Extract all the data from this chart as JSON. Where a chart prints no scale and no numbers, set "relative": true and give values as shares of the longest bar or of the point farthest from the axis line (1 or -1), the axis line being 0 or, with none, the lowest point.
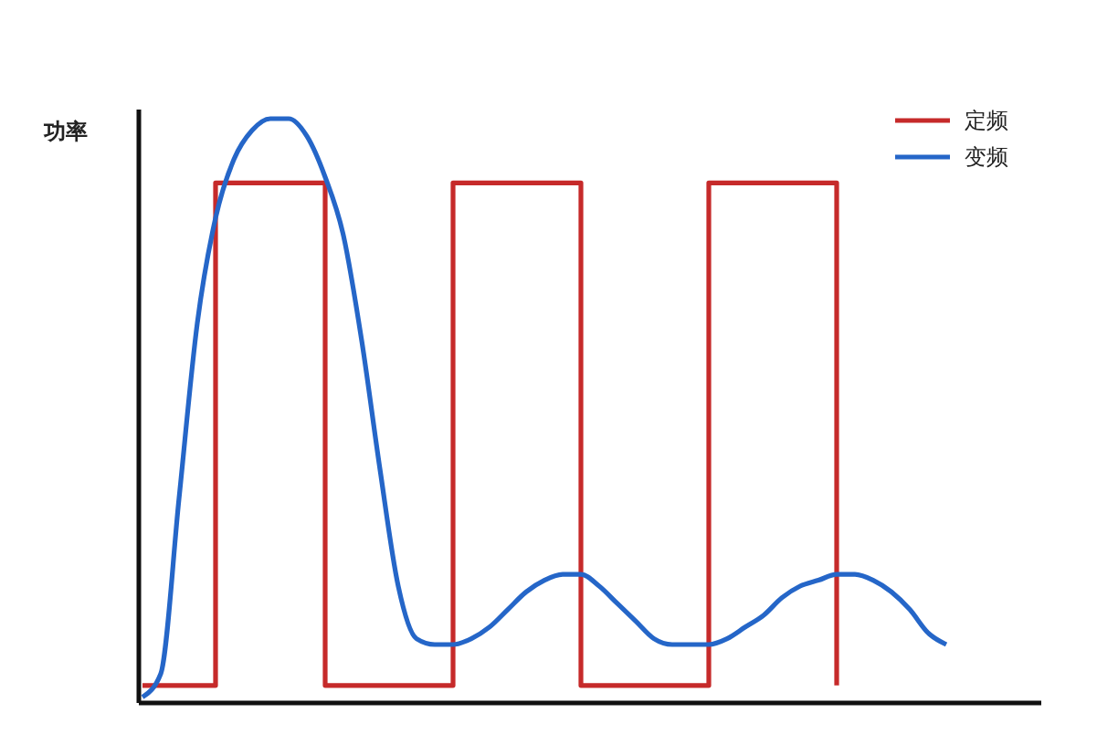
{
  "chart_data": {
    "type": "line",
    "ylabel": "功率",
    "relative": true,
    "legend": "top right",
    "categories": [
      null,
      null,
      null,
      null,
      null,
      null,
      null,
      null,
      null,
      null,
      null,
      null,
      null,
      null,
      null,
      null,
      null,
      null,
      null,
      null,
      null,
      null,
      null,
      null,
      null,
      null,
      null,
      null,
      null,
      null,
      null,
      null,
      null,
      null,
      null,
      null,
      null,
      null,
      null,
      null,
      null,
      null,
      null,
      null,
      null,
      null,
      null,
      null,
      null,
      null
    ],
    "series": [
      {
        "name": "定频",
        "type": "step",
        "color": "#c62a2a",
        "values": [
          0.03,
          0.03,
          0.03,
          0.03,
          0.89,
          0.89,
          0.89,
          0.89,
          0.89,
          0.89,
          0.03,
          0.03,
          0.03,
          0.03,
          0.03,
          0.03,
          0.03,
          0.89,
          0.89,
          0.89,
          0.89,
          0.89,
          0.89,
          0.89,
          0.03,
          0.03,
          0.03,
          0.03,
          0.03,
          0.03,
          0.03,
          0.89,
          0.89,
          0.89,
          0.89,
          0.89,
          0.89,
          0.89,
          0.03,
          null,
          null,
          null,
          null,
          null,
          null,
          null,
          null,
          null,
          null,
          null
        ]
      },
      {
        "name": "变频",
        "color": "#2566c8",
        "values": [
          0.01,
          0.05,
          0.35,
          0.65,
          0.83,
          0.93,
          0.98,
          1,
          1,
          0.97,
          0.9,
          0.8,
          0.62,
          0.4,
          0.2,
          0.11,
          0.1,
          0.1,
          0.11,
          0.13,
          0.16,
          0.19,
          0.21,
          0.22,
          0.22,
          0.2,
          0.17,
          0.14,
          0.11,
          0.1,
          0.1,
          0.1,
          0.11,
          0.13,
          0.15,
          0.18,
          0.2,
          0.21,
          0.22,
          0.22,
          0.21,
          0.19,
          0.16,
          0.12,
          0.1,
          null,
          null,
          null,
          null,
          null
        ]
      }
    ]
  }
}
